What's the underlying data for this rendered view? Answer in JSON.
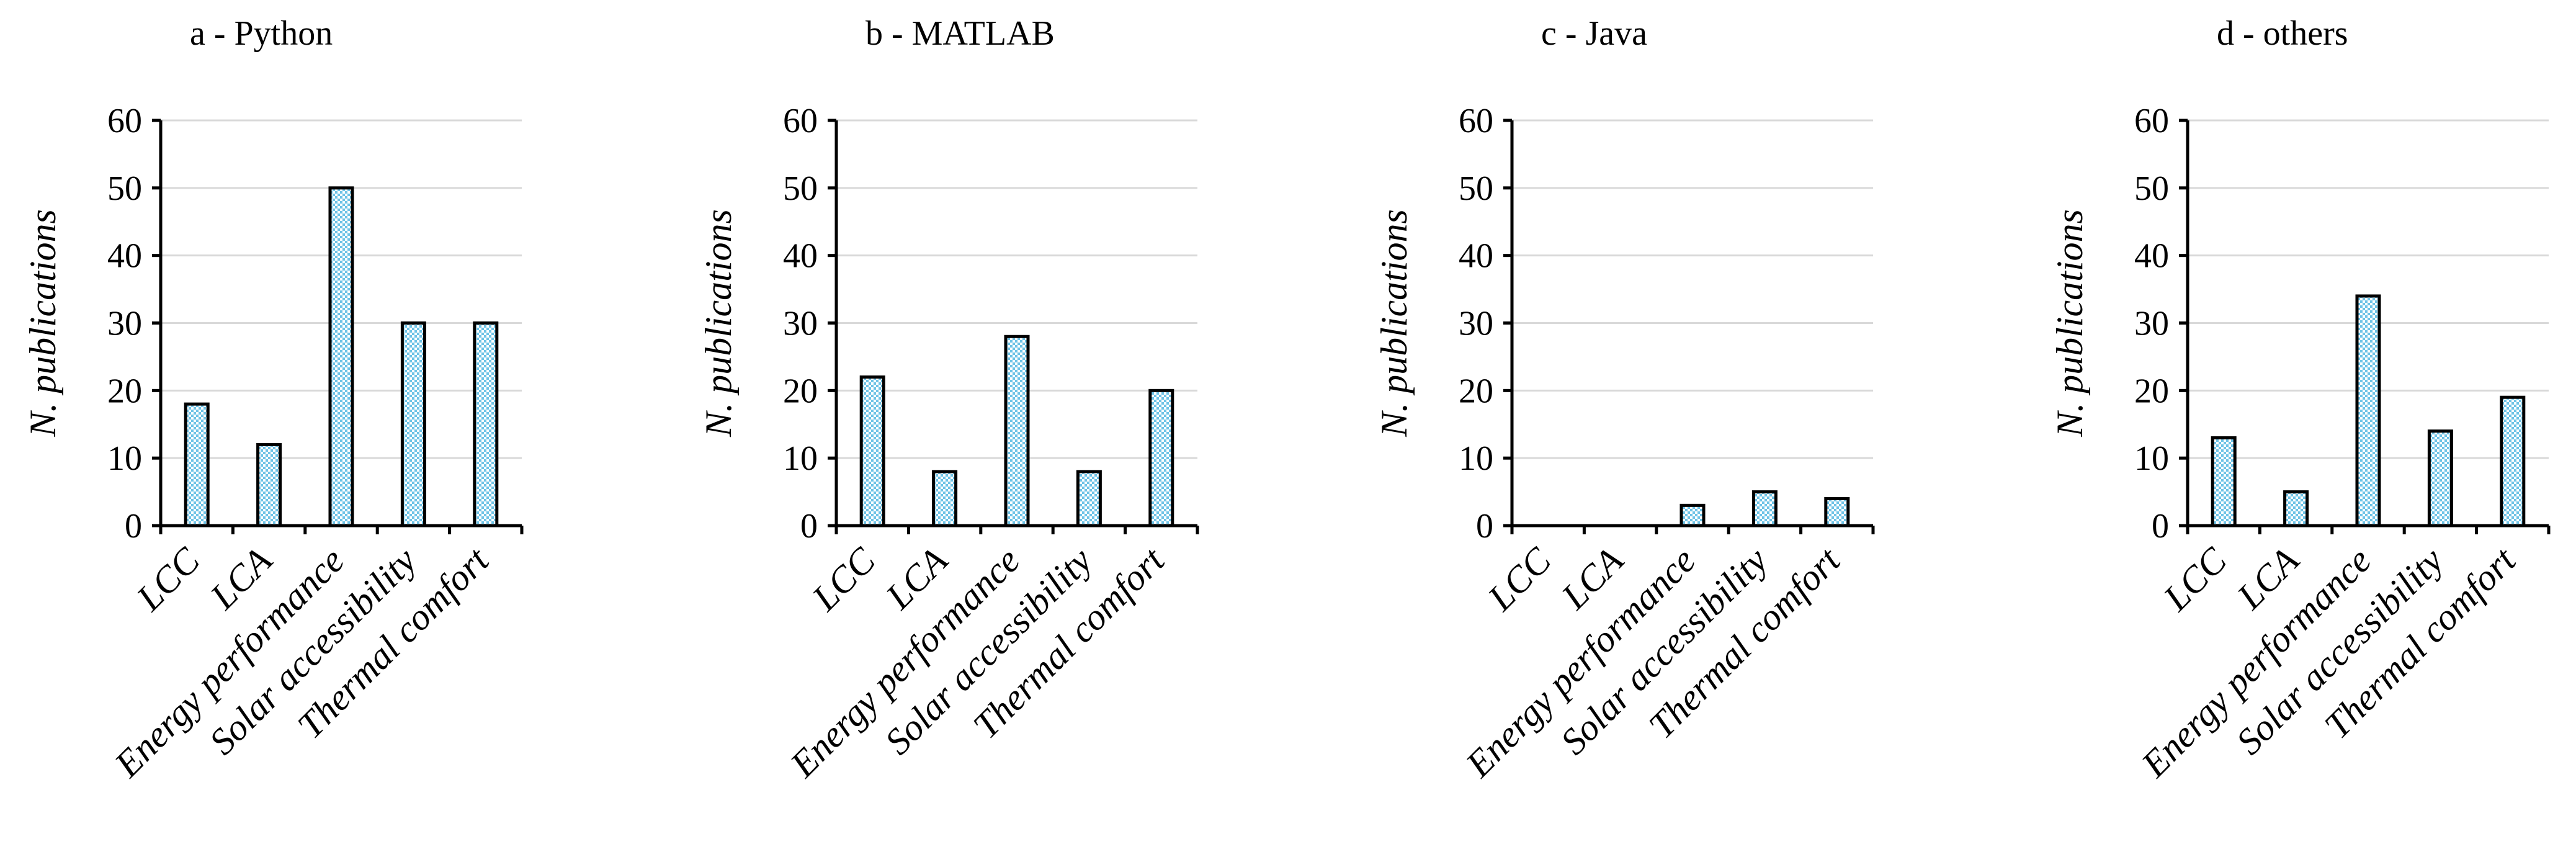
{
  "chart_data": [
    {
      "type": "bar",
      "title": "a - Python",
      "categories": [
        "LCC",
        "LCA",
        "Energy performance",
        "Solar accessibility",
        "Thermal comfort"
      ],
      "values": [
        18,
        12,
        50,
        30,
        30
      ],
      "xlabel": "",
      "ylabel": "N. publications",
      "ylim": [
        0,
        60
      ],
      "yticks": [
        0,
        10,
        20,
        30,
        40,
        50,
        60
      ],
      "grid": true,
      "legend": "none"
    },
    {
      "type": "bar",
      "title": "b - MATLAB",
      "categories": [
        "LCC",
        "LCA",
        "Energy performance",
        "Solar accessibility",
        "Thermal comfort"
      ],
      "values": [
        22,
        8,
        28,
        8,
        20
      ],
      "xlabel": "",
      "ylabel": "N. publications",
      "ylim": [
        0,
        60
      ],
      "yticks": [
        0,
        10,
        20,
        30,
        40,
        50,
        60
      ],
      "grid": true,
      "legend": "none"
    },
    {
      "type": "bar",
      "title": "c - Java",
      "categories": [
        "LCC",
        "LCA",
        "Energy performance",
        "Solar accessibility",
        "Thermal comfort"
      ],
      "values": [
        0,
        0,
        3,
        5,
        4
      ],
      "xlabel": "",
      "ylabel": "N. publications",
      "ylim": [
        0,
        60
      ],
      "yticks": [
        0,
        10,
        20,
        30,
        40,
        50,
        60
      ],
      "grid": true,
      "legend": "none"
    },
    {
      "type": "bar",
      "title": "d - others",
      "categories": [
        "LCC",
        "LCA",
        "Energy performance",
        "Solar accessibility",
        "Thermal comfort"
      ],
      "values": [
        13,
        5,
        34,
        14,
        19
      ],
      "xlabel": "",
      "ylabel": "N. publications",
      "ylim": [
        0,
        60
      ],
      "yticks": [
        0,
        10,
        20,
        30,
        40,
        50,
        60
      ],
      "grid": true,
      "legend": "none"
    }
  ],
  "colors": {
    "bar_fill_light": "#ffffff",
    "bar_fill_dark": "#6fc3e6",
    "bar_edge": "#000000",
    "grid": "#d9d9d9",
    "axis": "#000000"
  }
}
